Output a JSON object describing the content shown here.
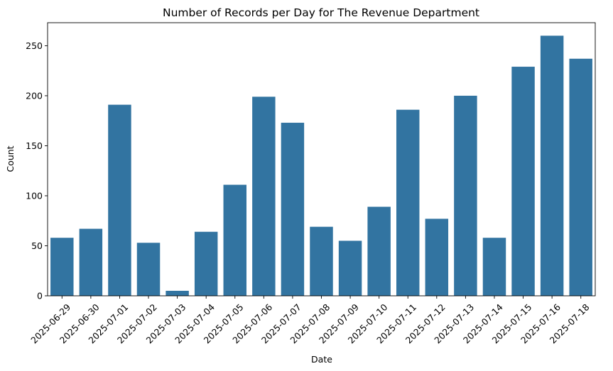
{
  "chart_data": {
    "type": "bar",
    "title": "Number of Records per Day for The Revenue Department",
    "xlabel": "Date",
    "ylabel": "Count",
    "categories": [
      "2025-06-29",
      "2025-06-30",
      "2025-07-01",
      "2025-07-02",
      "2025-07-03",
      "2025-07-04",
      "2025-07-05",
      "2025-07-06",
      "2025-07-07",
      "2025-07-08",
      "2025-07-09",
      "2025-07-10",
      "2025-07-11",
      "2025-07-12",
      "2025-07-13",
      "2025-07-14",
      "2025-07-15",
      "2025-07-16",
      "2025-07-18"
    ],
    "values": [
      58,
      67,
      191,
      53,
      5,
      64,
      111,
      199,
      173,
      69,
      55,
      89,
      186,
      77,
      200,
      58,
      229,
      260,
      237
    ],
    "ylim": [
      0,
      273
    ],
    "yticks": [
      0,
      50,
      100,
      150,
      200,
      250
    ],
    "bar_color": "#3274a1",
    "grid": false,
    "legend": "none"
  }
}
